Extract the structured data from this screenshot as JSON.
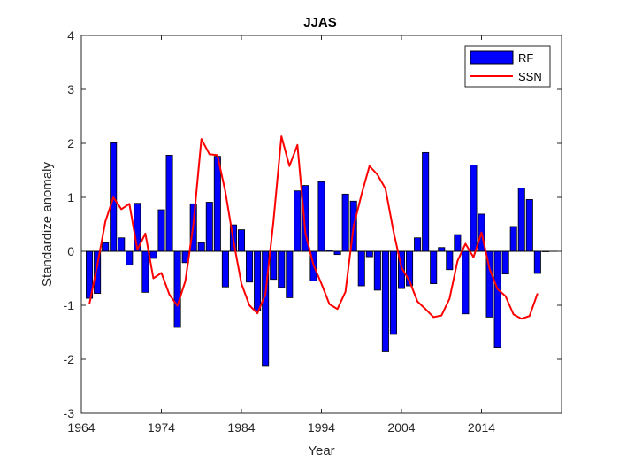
{
  "chart_data": {
    "type": "bar",
    "title": "JJAS",
    "xlabel": "Year",
    "ylabel": "Standardize anomaly",
    "xlim": [
      1964,
      2024
    ],
    "ylim": [
      -3,
      4
    ],
    "xticks": [
      1964,
      1974,
      1984,
      1994,
      2004,
      2014
    ],
    "yticks": [
      -3,
      -2,
      -1,
      0,
      1,
      2,
      3,
      4
    ],
    "grid": false,
    "legend_position": "top-right",
    "series": [
      {
        "name": "RF",
        "type": "bar",
        "color": "#0000ff",
        "x": [
          1965,
          1966,
          1967,
          1968,
          1969,
          1970,
          1971,
          1972,
          1973,
          1974,
          1975,
          1976,
          1977,
          1978,
          1979,
          1980,
          1981,
          1982,
          1983,
          1984,
          1985,
          1986,
          1987,
          1988,
          1989,
          1990,
          1991,
          1992,
          1993,
          1994,
          1995,
          1996,
          1997,
          1998,
          1999,
          2000,
          2001,
          2002,
          2003,
          2004,
          2005,
          2006,
          2007,
          2008,
          2009,
          2010,
          2011,
          2012,
          2013,
          2014,
          2015,
          2016,
          2017,
          2018,
          2019,
          2020,
          2021,
          2022
        ],
        "values": [
          -0.87,
          -0.78,
          0.16,
          2.01,
          0.25,
          -0.25,
          0.89,
          -0.76,
          -0.13,
          0.77,
          1.78,
          -1.41,
          -0.21,
          0.88,
          0.16,
          0.91,
          1.76,
          -0.66,
          0.49,
          0.4,
          -0.57,
          -1.1,
          -2.13,
          -0.52,
          -0.67,
          -0.86,
          1.12,
          1.22,
          -0.55,
          1.29,
          0.02,
          -0.06,
          1.06,
          0.93,
          -0.64,
          -0.1,
          -0.72,
          -1.86,
          -1.54,
          -0.69,
          -0.64,
          0.25,
          1.83,
          -0.6,
          0.07,
          -0.34,
          0.31,
          -1.16,
          1.6,
          0.69,
          -1.22,
          -1.78,
          -0.42,
          0.46,
          1.17,
          0.96,
          -0.41,
          0.0
        ]
      },
      {
        "name": "SSN",
        "type": "line",
        "color": "#ff0000",
        "x": [
          1965,
          1966,
          1967,
          1968,
          1969,
          1970,
          1971,
          1972,
          1973,
          1974,
          1975,
          1976,
          1977,
          1978,
          1979,
          1980,
          1981,
          1982,
          1983,
          1984,
          1985,
          1986,
          1987,
          1988,
          1989,
          1990,
          1991,
          1992,
          1993,
          1994,
          1995,
          1996,
          1997,
          1998,
          1999,
          2000,
          2001,
          2002,
          2003,
          2004,
          2005,
          2006,
          2007,
          2008,
          2009,
          2010,
          2011,
          2012,
          2013,
          2014,
          2015,
          2016,
          2017,
          2018,
          2019,
          2020,
          2021
        ],
        "values": [
          -0.98,
          -0.25,
          0.55,
          1.0,
          0.78,
          0.88,
          0.03,
          0.33,
          -0.5,
          -0.4,
          -0.8,
          -1.01,
          -0.55,
          0.5,
          2.08,
          1.8,
          1.78,
          1.1,
          0.2,
          -0.6,
          -1.0,
          -1.15,
          -0.8,
          0.55,
          2.13,
          1.58,
          1.97,
          0.33,
          -0.25,
          -0.6,
          -0.98,
          -1.07,
          -0.75,
          0.45,
          1.05,
          1.58,
          1.42,
          1.16,
          0.37,
          -0.3,
          -0.55,
          -0.93,
          -1.07,
          -1.22,
          -1.19,
          -0.88,
          -0.18,
          0.14,
          -0.11,
          0.35,
          -0.32,
          -0.7,
          -0.83,
          -1.17,
          -1.25,
          -1.2,
          -0.78
        ]
      }
    ]
  }
}
